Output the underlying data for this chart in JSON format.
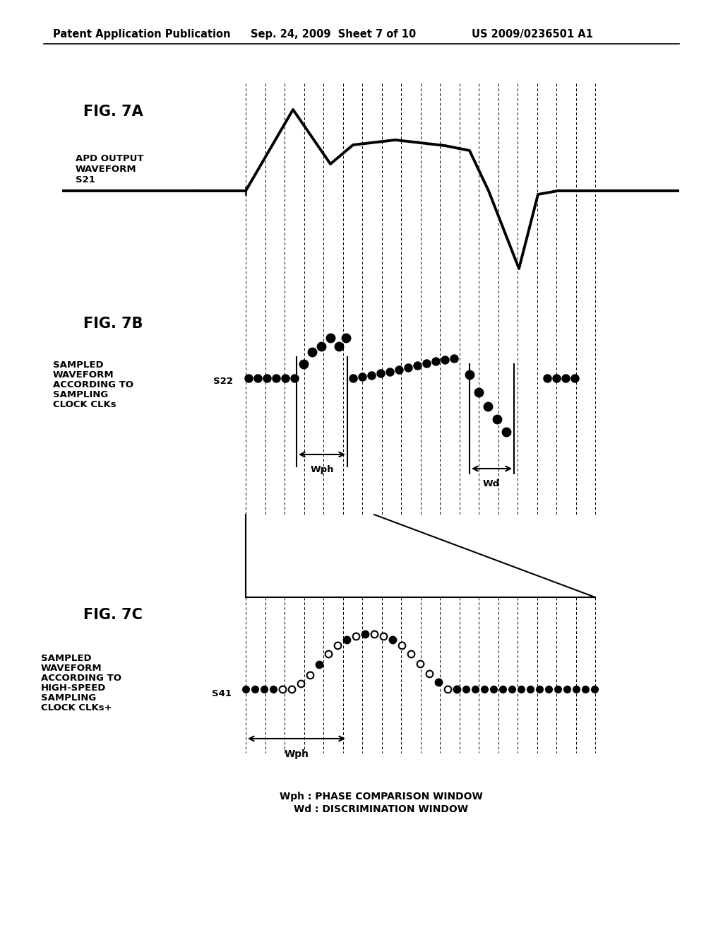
{
  "header_left": "Patent Application Publication",
  "header_mid": "Sep. 24, 2009  Sheet 7 of 10",
  "header_right": "US 2009/0236501 A1",
  "fig7a_label": "FIG. 7A",
  "fig7b_label": "FIG. 7B",
  "fig7c_label": "FIG. 7C",
  "fig7a_apd": "APD OUTPUT\nWAVEFORM\nS21",
  "fig7b_desc1": "SAMPLED",
  "fig7b_desc2": "WAVEFORM",
  "fig7b_desc3": "ACCORDING TO",
  "fig7b_desc4": "SAMPLING",
  "fig7b_desc5": "CLOCK CLKs",
  "fig7b_s22": "S22",
  "fig7c_desc1": "SAMPLED",
  "fig7c_desc2": "WAVEFORM",
  "fig7c_desc3": "ACCORDING TO",
  "fig7c_desc4": "HIGH-SPEED",
  "fig7c_desc5": "SAMPLING",
  "fig7c_desc6": "CLOCK CLKs+",
  "fig7c_s41": "S41",
  "wph_label": "Wph",
  "wd_label": "Wd",
  "bottom_text1": "Wph : PHASE COMPARISON WINDOW",
  "bottom_text2": "Wd : DISCRIMINATION WINDOW",
  "bg_color": "#ffffff"
}
